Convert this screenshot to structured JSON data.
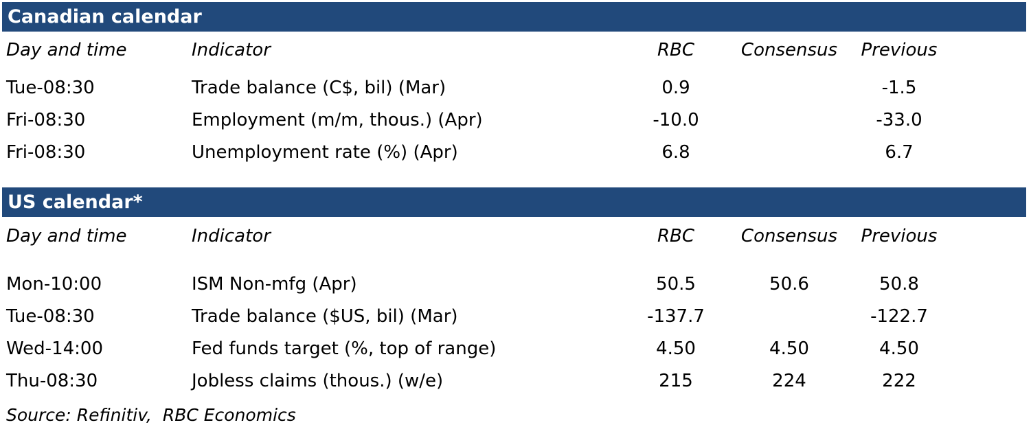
{
  "styles": {
    "bar_background": "#21497B",
    "bar_text_color": "#FFFFFF",
    "body_text_color": "#000000",
    "page_background": "#FFFFFF"
  },
  "tables": [
    {
      "title": "Canadian calendar",
      "columns": {
        "day": "Day and time",
        "indicator": "Indicator",
        "rbc": "RBC",
        "consensus": "Consensus",
        "previous": "Previous"
      },
      "rows": [
        {
          "day": "Tue-08:30",
          "indicator": "Trade balance (C$, bil) (Mar)",
          "rbc": "0.9",
          "consensus": "",
          "previous": "-1.5"
        },
        {
          "day": "Fri-08:30",
          "indicator": "Employment (m/m, thous.) (Apr)",
          "rbc": "-10.0",
          "consensus": "",
          "previous": "-33.0"
        },
        {
          "day": "Fri-08:30",
          "indicator": "Unemployment rate (%) (Apr)",
          "rbc": "6.8",
          "consensus": "",
          "previous": "6.7"
        }
      ]
    },
    {
      "title": "US calendar*",
      "columns": {
        "day": "Day and time",
        "indicator": "Indicator",
        "rbc": "RBC",
        "consensus": "Consensus",
        "previous": "Previous"
      },
      "rows": [
        {
          "day": "Mon-10:00",
          "indicator": "ISM Non-mfg (Apr)",
          "rbc": "50.5",
          "consensus": "50.6",
          "previous": "50.8"
        },
        {
          "day": "Tue-08:30",
          "indicator": "Trade balance ($US, bil) (Mar)",
          "rbc": "-137.7",
          "consensus": "",
          "previous": "-122.7"
        },
        {
          "day": "Wed-14:00",
          "indicator": "Fed funds target (%, top of range)",
          "rbc": "4.50",
          "consensus": "4.50",
          "previous": "4.50"
        },
        {
          "day": "Thu-08:30",
          "indicator": "Jobless claims (thous.) (w/e)",
          "rbc": "215",
          "consensus": "224",
          "previous": "222"
        }
      ]
    }
  ],
  "source_note": "Source: Refinitiv,  RBC Economics"
}
